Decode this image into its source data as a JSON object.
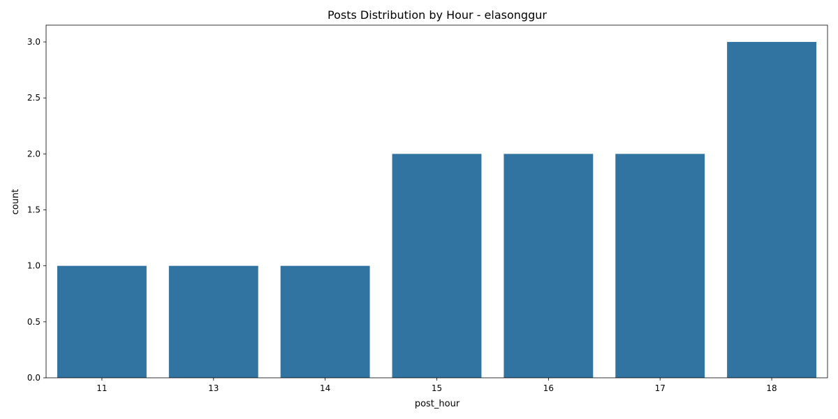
{
  "chart_data": {
    "type": "bar",
    "title": "Posts Distribution by Hour - elasonggur",
    "xlabel": "post_hour",
    "ylabel": "count",
    "categories": [
      "11",
      "13",
      "14",
      "15",
      "16",
      "17",
      "18"
    ],
    "values": [
      1,
      1,
      1,
      2,
      2,
      2,
      3
    ],
    "ylim": [
      0,
      3.15
    ],
    "yticks": [
      0.0,
      0.5,
      1.0,
      1.5,
      2.0,
      2.5,
      3.0
    ],
    "ytick_labels": [
      "0.0",
      "0.5",
      "1.0",
      "1.5",
      "2.0",
      "2.5",
      "3.0"
    ],
    "grid": false,
    "bar_color": "#3274a1"
  }
}
